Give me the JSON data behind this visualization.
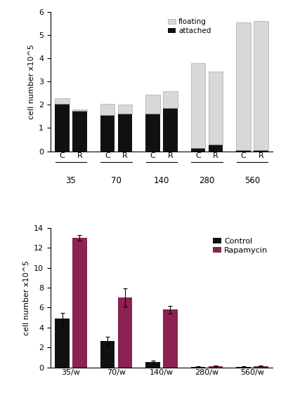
{
  "top_chart": {
    "groups": [
      "35",
      "70",
      "140",
      "280",
      "560"
    ],
    "control_attached": [
      2.05,
      1.55,
      1.62,
      0.15,
      0.05
    ],
    "control_floating": [
      0.22,
      0.48,
      0.82,
      3.65,
      5.5
    ],
    "rapamycin_attached": [
      1.75,
      1.62,
      1.85,
      0.28,
      0.05
    ],
    "rapamycin_floating": [
      0.05,
      0.38,
      0.72,
      3.15,
      5.55
    ],
    "ylim": [
      0,
      6
    ],
    "yticks": [
      0,
      1,
      2,
      3,
      4,
      5,
      6
    ],
    "ylabel": "cell number x10^5",
    "bar_width": 0.32,
    "bar_color_attached": "#111111",
    "bar_color_floating": "#d8d8d8",
    "legend_labels": [
      "floating",
      "attached"
    ]
  },
  "bottom_chart": {
    "categories": [
      "35/w",
      "70/w",
      "140/w",
      "280/w",
      "560/w"
    ],
    "control_values": [
      4.9,
      2.65,
      0.5,
      0.07,
      0.07
    ],
    "control_errors": [
      0.6,
      0.4,
      0.15,
      0.02,
      0.02
    ],
    "rapamycin_values": [
      13.0,
      7.0,
      5.8,
      0.12,
      0.12
    ],
    "rapamycin_errors": [
      0.3,
      0.9,
      0.4,
      0.03,
      0.03
    ],
    "ylim": [
      0,
      14
    ],
    "yticks": [
      0,
      2,
      4,
      6,
      8,
      10,
      12,
      14
    ],
    "ylabel": "cell number x10^5",
    "bar_width": 0.32,
    "control_color": "#111111",
    "rapamycin_color": "#8b2252",
    "legend_labels": [
      "Control",
      "Rapamycin"
    ]
  }
}
